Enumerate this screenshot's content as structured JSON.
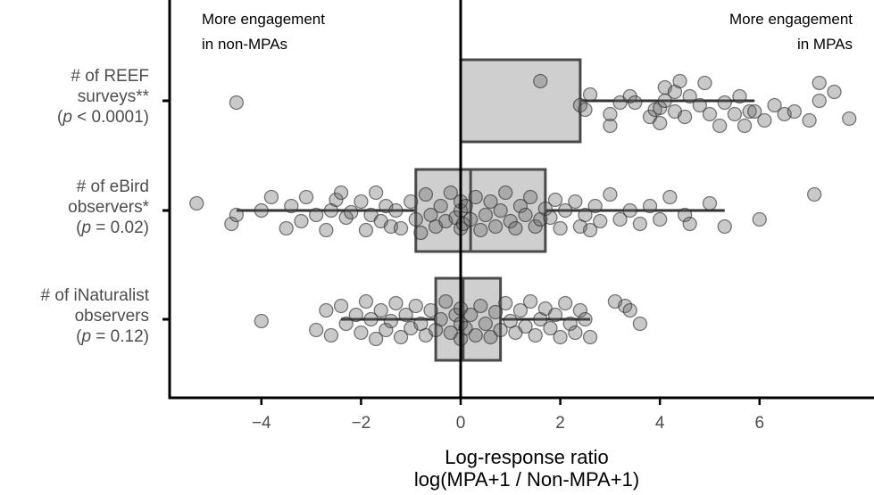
{
  "chart_data": {
    "type": "box",
    "title": "",
    "xlabel_line1": "Log-response ratio",
    "xlabel_line2": "log(MPA+1 / Non-MPA+1)",
    "xlim": [
      -5.5,
      8.2
    ],
    "xticks": [
      -4,
      -2,
      0,
      2,
      4,
      6
    ],
    "xtick_labels": [
      "−4",
      "−2",
      "0",
      "2",
      "4",
      "6"
    ],
    "reference_line_x": 0,
    "annotations": {
      "left_line1": "More engagement",
      "left_line2": "in non-MPAs",
      "right_line1": "More engagement",
      "right_line2": "in MPAs"
    },
    "categories": [
      {
        "line1": "# of REEF",
        "line2": "surveys**",
        "p_open": "(",
        "p_sym": "p",
        "p_rest": " < 0.0001)",
        "box": {
          "q1": 0.0,
          "median": 0.0,
          "q3": 2.4,
          "whisker_low": 0.0,
          "whisker_high": 5.9
        },
        "points": [
          [
            -4.5,
            0.02
          ],
          [
            1.6,
            -0.22
          ],
          [
            2.4,
            0.05
          ],
          [
            2.5,
            0.1
          ],
          [
            2.6,
            -0.07
          ],
          [
            3.0,
            0.28
          ],
          [
            3.0,
            0.15
          ],
          [
            3.2,
            0.02
          ],
          [
            3.4,
            -0.05
          ],
          [
            3.5,
            0.02
          ],
          [
            3.8,
            0.18
          ],
          [
            3.9,
            0.1
          ],
          [
            4.0,
            0.25
          ],
          [
            4.0,
            0.08
          ],
          [
            4.1,
            0.0
          ],
          [
            4.1,
            -0.15
          ],
          [
            4.3,
            0.12
          ],
          [
            4.3,
            -0.1
          ],
          [
            4.4,
            -0.22
          ],
          [
            4.5,
            0.18
          ],
          [
            4.6,
            -0.05
          ],
          [
            4.8,
            0.05
          ],
          [
            4.9,
            -0.2
          ],
          [
            5.0,
            0.15
          ],
          [
            5.2,
            0.28
          ],
          [
            5.3,
            0.02
          ],
          [
            5.5,
            0.15
          ],
          [
            5.6,
            -0.05
          ],
          [
            5.7,
            0.28
          ],
          [
            5.8,
            0.12
          ],
          [
            5.9,
            0.12
          ],
          [
            6.1,
            0.22
          ],
          [
            6.3,
            0.05
          ],
          [
            6.5,
            0.15
          ],
          [
            6.7,
            0.12
          ],
          [
            7.0,
            0.22
          ],
          [
            7.2,
            0.0
          ],
          [
            7.2,
            -0.2
          ],
          [
            7.5,
            -0.1
          ],
          [
            7.8,
            0.2
          ]
        ]
      },
      {
        "line1": "# of eBird",
        "line2": "observers*",
        "p_open": "(",
        "p_sym": "p",
        "p_rest": " = 0.02)",
        "box": {
          "q1": -0.9,
          "median": 0.2,
          "q3": 1.7,
          "whisker_low": -4.5,
          "whisker_high": 5.3
        },
        "points": [
          [
            -5.3,
            -0.08
          ],
          [
            -4.6,
            0.15
          ],
          [
            -4.5,
            0.05
          ],
          [
            -4.0,
            0.0
          ],
          [
            -3.8,
            -0.15
          ],
          [
            -3.5,
            0.2
          ],
          [
            -3.4,
            -0.05
          ],
          [
            -3.2,
            0.12
          ],
          [
            -3.1,
            -0.15
          ],
          [
            -2.9,
            0.05
          ],
          [
            -2.7,
            0.22
          ],
          [
            -2.6,
            0.0
          ],
          [
            -2.5,
            -0.12
          ],
          [
            -2.4,
            -0.2
          ],
          [
            -2.3,
            0.08
          ],
          [
            -2.2,
            0.02
          ],
          [
            -2.0,
            -0.1
          ],
          [
            -1.9,
            0.22
          ],
          [
            -1.8,
            0.05
          ],
          [
            -1.7,
            -0.2
          ],
          [
            -1.6,
            0.12
          ],
          [
            -1.5,
            -0.05
          ],
          [
            -1.4,
            0.18
          ],
          [
            -1.3,
            0.0
          ],
          [
            -1.2,
            0.2
          ],
          [
            -1.0,
            -0.1
          ],
          [
            -0.9,
            0.1
          ],
          [
            -0.8,
            0.25
          ],
          [
            -0.7,
            -0.18
          ],
          [
            -0.6,
            0.05
          ],
          [
            -0.5,
            0.18
          ],
          [
            -0.4,
            -0.05
          ],
          [
            -0.3,
            0.12
          ],
          [
            -0.2,
            -0.2
          ],
          [
            -0.1,
            0.08
          ],
          [
            0.0,
            0.2
          ],
          [
            0.0,
            0.0
          ],
          [
            0.0,
            -0.1
          ],
          [
            0.05,
            0.15
          ],
          [
            0.1,
            -0.05
          ],
          [
            0.2,
            0.1
          ],
          [
            0.3,
            -0.15
          ],
          [
            0.4,
            0.22
          ],
          [
            0.5,
            0.05
          ],
          [
            0.6,
            -0.1
          ],
          [
            0.7,
            0.18
          ],
          [
            0.8,
            0.0
          ],
          [
            0.9,
            -0.2
          ],
          [
            1.0,
            0.12
          ],
          [
            1.1,
            0.2
          ],
          [
            1.2,
            -0.05
          ],
          [
            1.3,
            0.05
          ],
          [
            1.4,
            -0.15
          ],
          [
            1.5,
            0.18
          ],
          [
            1.6,
            0.1
          ],
          [
            1.7,
            -0.02
          ],
          [
            1.8,
            0.08
          ],
          [
            1.9,
            -0.12
          ],
          [
            2.0,
            0.2
          ],
          [
            2.1,
            0.0
          ],
          [
            2.3,
            -0.1
          ],
          [
            2.4,
            0.18
          ],
          [
            2.5,
            0.05
          ],
          [
            2.6,
            0.22
          ],
          [
            2.7,
            -0.05
          ],
          [
            2.8,
            0.12
          ],
          [
            3.0,
            -0.18
          ],
          [
            3.2,
            0.1
          ],
          [
            3.4,
            0.0
          ],
          [
            3.6,
            0.15
          ],
          [
            3.8,
            -0.05
          ],
          [
            4.0,
            0.1
          ],
          [
            4.2,
            -0.15
          ],
          [
            4.5,
            0.05
          ],
          [
            4.6,
            0.15
          ],
          [
            5.0,
            -0.08
          ],
          [
            5.3,
            0.18
          ],
          [
            6.0,
            0.1
          ],
          [
            7.1,
            -0.18
          ]
        ]
      },
      {
        "line1": "# of iNaturalist",
        "line2": "observers",
        "p_open": "(",
        "p_sym": "p",
        "p_rest": " = 0.12)",
        "box": {
          "q1": -0.5,
          "median": 0.05,
          "q3": 0.8,
          "whisker_low": -2.4,
          "whisker_high": 2.6
        },
        "points": [
          [
            -4.0,
            0.02
          ],
          [
            -2.9,
            0.12
          ],
          [
            -2.7,
            -0.1
          ],
          [
            -2.6,
            0.18
          ],
          [
            -2.4,
            -0.15
          ],
          [
            -2.3,
            0.05
          ],
          [
            -2.1,
            -0.05
          ],
          [
            -2.0,
            0.15
          ],
          [
            -1.9,
            -0.2
          ],
          [
            -1.8,
            0.0
          ],
          [
            -1.7,
            0.22
          ],
          [
            -1.6,
            -0.1
          ],
          [
            -1.5,
            0.12
          ],
          [
            -1.4,
            0.02
          ],
          [
            -1.3,
            -0.18
          ],
          [
            -1.2,
            0.2
          ],
          [
            -1.1,
            -0.05
          ],
          [
            -1.0,
            0.1
          ],
          [
            -0.9,
            -0.15
          ],
          [
            -0.8,
            0.05
          ],
          [
            -0.7,
            0.18
          ],
          [
            -0.6,
            -0.1
          ],
          [
            -0.5,
            0.12
          ],
          [
            -0.4,
            0.0
          ],
          [
            -0.3,
            -0.2
          ],
          [
            -0.2,
            0.15
          ],
          [
            -0.1,
            -0.05
          ],
          [
            0.0,
            0.22
          ],
          [
            0.0,
            0.05
          ],
          [
            0.0,
            -0.12
          ],
          [
            0.1,
            0.1
          ],
          [
            0.2,
            -0.05
          ],
          [
            0.3,
            0.18
          ],
          [
            0.4,
            -0.15
          ],
          [
            0.5,
            0.05
          ],
          [
            0.6,
            0.2
          ],
          [
            0.7,
            -0.08
          ],
          [
            0.8,
            0.12
          ],
          [
            0.9,
            -0.18
          ],
          [
            1.0,
            0.02
          ],
          [
            1.1,
            0.15
          ],
          [
            1.2,
            -0.1
          ],
          [
            1.3,
            0.08
          ],
          [
            1.4,
            -0.2
          ],
          [
            1.5,
            0.18
          ],
          [
            1.6,
            0.0
          ],
          [
            1.7,
            -0.12
          ],
          [
            1.8,
            0.1
          ],
          [
            1.9,
            -0.05
          ],
          [
            2.0,
            0.2
          ],
          [
            2.1,
            -0.18
          ],
          [
            2.2,
            0.05
          ],
          [
            2.3,
            0.15
          ],
          [
            2.4,
            -0.1
          ],
          [
            2.5,
            0.0
          ],
          [
            2.6,
            0.2
          ],
          [
            3.1,
            -0.2
          ],
          [
            3.3,
            -0.15
          ],
          [
            3.4,
            -0.1
          ],
          [
            3.6,
            0.05
          ]
        ]
      }
    ]
  }
}
